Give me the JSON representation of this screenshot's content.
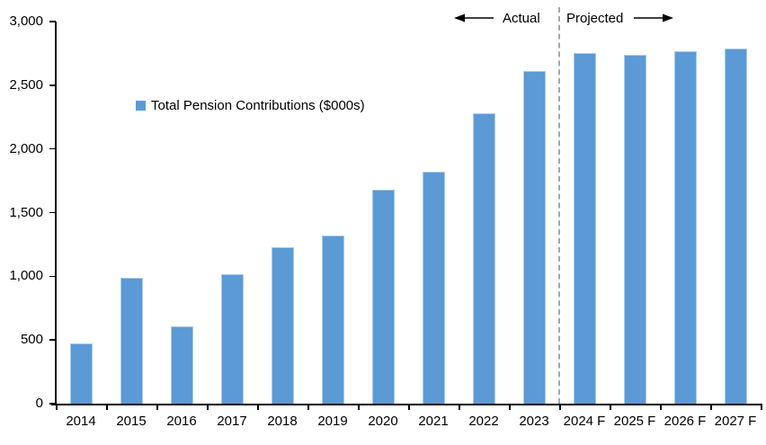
{
  "chart_data": {
    "type": "bar",
    "legend": "Total Pension Contributions ($000s)",
    "legend_position": "upper-left-inside",
    "categories": [
      "2014",
      "2015",
      "2016",
      "2017",
      "2018",
      "2019",
      "2020",
      "2021",
      "2022",
      "2023",
      "2024 F",
      "2025 F",
      "2026 F",
      "2027 F"
    ],
    "values": [
      470,
      990,
      610,
      1020,
      1230,
      1320,
      1680,
      1820,
      2280,
      2610,
      2750,
      2740,
      2770,
      2790
    ],
    "ylim": [
      0,
      3000
    ],
    "ytick_interval": 500,
    "ytick_labels": [
      "0",
      "500",
      "1,000",
      "1,500",
      "2,000",
      "2,500",
      "3,000"
    ],
    "grid": false,
    "bar_color": "#5B9AD5",
    "bar_border_color": "#A8CCEA",
    "divider_after_index": 9,
    "divider_color": "#A6A6A6",
    "axis_color": "#000000",
    "annotations": {
      "left_label": "Actual",
      "right_label": "Projected"
    }
  }
}
